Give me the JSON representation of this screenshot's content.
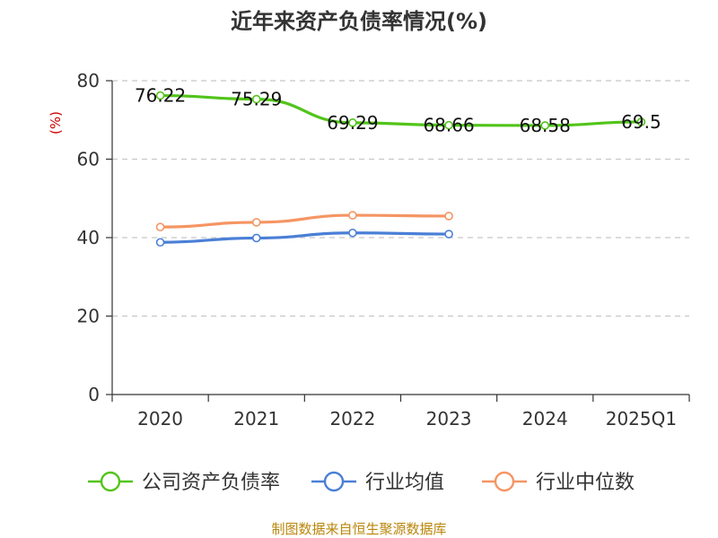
{
  "chart_data": {
    "type": "line",
    "title": "近年来资产负债率情况(%)",
    "ylabel": "(%)",
    "categories": [
      "2020",
      "2021",
      "2022",
      "2023",
      "2024",
      "2025Q1"
    ],
    "yticks": [
      "0",
      "20",
      "40",
      "60",
      "80"
    ],
    "ylim": [
      0,
      80
    ],
    "grid": true,
    "legend_position": "bottom",
    "series": [
      {
        "name": "公司资产负债率",
        "color": "#52c41a",
        "values": [
          76.22,
          75.29,
          69.29,
          68.66,
          68.58,
          69.5
        ],
        "labels": [
          "76.22",
          "75.29",
          "69.29",
          "68.66",
          "68.58",
          "69.5"
        ]
      },
      {
        "name": "行业均值",
        "color": "#4a7fd6",
        "values": [
          38.8,
          39.9,
          41.2,
          40.9,
          null,
          null
        ]
      },
      {
        "name": "行业中位数",
        "color": "#f59563",
        "values": [
          42.7,
          43.9,
          45.7,
          45.5,
          null,
          null
        ]
      }
    ]
  },
  "source": "制图数据来自恒生聚源数据库"
}
